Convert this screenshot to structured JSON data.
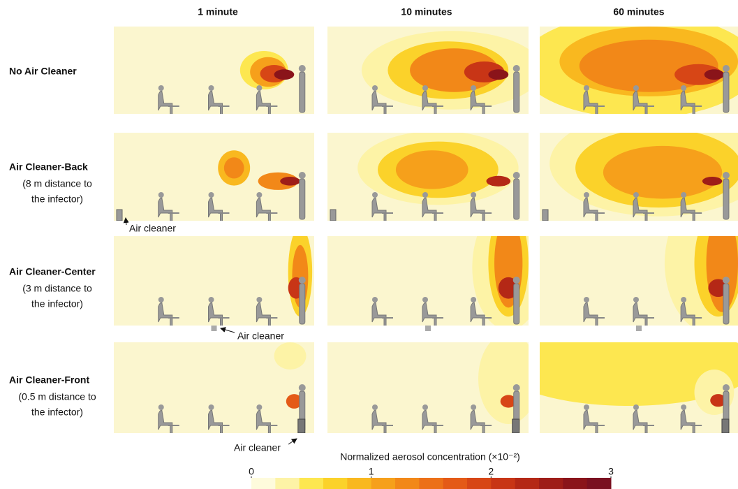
{
  "columns": [
    "1 minute",
    "10 minutes",
    "60 minutes"
  ],
  "rows": [
    {
      "title": "No Air Cleaner"
    },
    {
      "title": "Air Cleaner-Back",
      "note": [
        "(8 m distance to",
        "the infector)"
      ]
    },
    {
      "title": "Air Cleaner-Center",
      "note": [
        "(3 m distance to",
        "the infector)"
      ]
    },
    {
      "title": "Air Cleaner-Front",
      "note": [
        "(0.5 m distance to",
        "the infector)"
      ]
    }
  ],
  "annotations": [
    "Air cleaner",
    "Air cleaner",
    "Air cleaner"
  ],
  "colorbar": {
    "label": "Normalized aerosol concentration (×10⁻²)",
    "lim": [
      0,
      3
    ],
    "ticks": [
      0,
      1,
      2,
      3
    ],
    "colors": [
      "#fefbdc",
      "#fdf3a6",
      "#fde750",
      "#fbd22a",
      "#f9b81f",
      "#f6a01b",
      "#f28818",
      "#ec7018",
      "#e45a17",
      "#d74616",
      "#c83516",
      "#b42816",
      "#9e1d18",
      "#8a141a",
      "#7a1020"
    ]
  }
}
